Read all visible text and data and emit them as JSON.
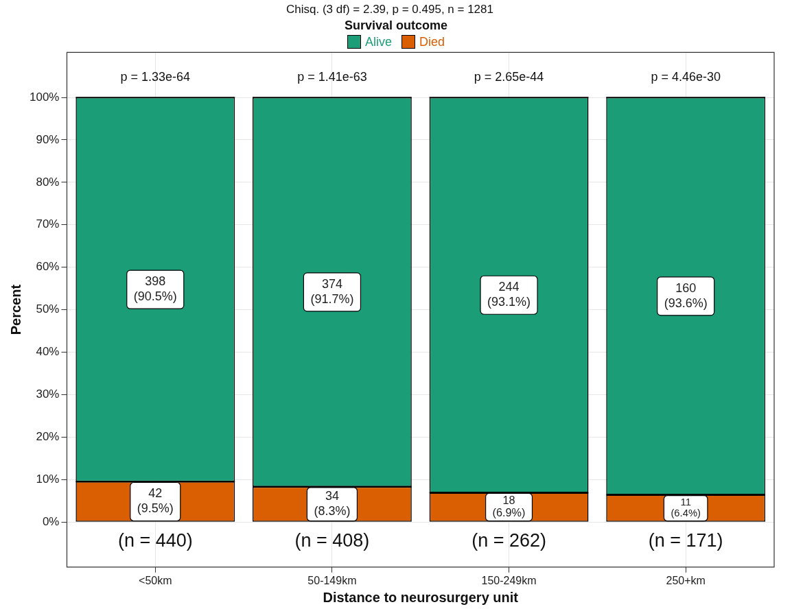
{
  "chart_data": {
    "type": "bar",
    "stacked": true,
    "title": "Chisq. (3 df) = 2.39, p = 0.495, n = 1281",
    "legend_title": "Survival outcome",
    "legend": "top",
    "xlabel": "Distance to neurosurgery unit",
    "ylabel": "Percent",
    "grid": true,
    "categories": [
      "<50km",
      "50-149km",
      "150-249km",
      "250+km"
    ],
    "series": [
      {
        "name": "Died",
        "color": "#d95f02",
        "values": [
          9.5,
          8.3,
          6.9,
          6.4
        ],
        "value_labels": [
          "42\n(9.5%)",
          "34\n(8.3%)",
          "18\n(6.9%)",
          "11\n(6.4%)"
        ]
      },
      {
        "name": "Alive",
        "color": "#1b9e77",
        "values": [
          90.5,
          91.7,
          93.1,
          93.6
        ],
        "value_labels": [
          "398\n(90.5%)",
          "374\n(91.7%)",
          "244\n(93.1%)",
          "160\n(93.6%)"
        ]
      }
    ],
    "ylim": [
      -10.6,
      110.6
    ],
    "yticks": [
      {
        "value": 0,
        "label": "0%"
      },
      {
        "value": 10,
        "label": "10%"
      },
      {
        "value": 20,
        "label": "20%"
      },
      {
        "value": 30,
        "label": "30%"
      },
      {
        "value": 40,
        "label": "40%"
      },
      {
        "value": 50,
        "label": "50%"
      },
      {
        "value": 60,
        "label": "60%"
      },
      {
        "value": 70,
        "label": "70%"
      },
      {
        "value": 80,
        "label": "80%"
      },
      {
        "value": 90,
        "label": "90%"
      },
      {
        "value": 100,
        "label": "100%"
      }
    ],
    "annotations": [
      "p = 1.33e-64",
      "p = 1.41e-63",
      "p = 2.65e-44",
      "p = 4.46e-30",
      "(n = 440)",
      "(n = 408)",
      "(n = 262)",
      "(n = 171)"
    ]
  }
}
